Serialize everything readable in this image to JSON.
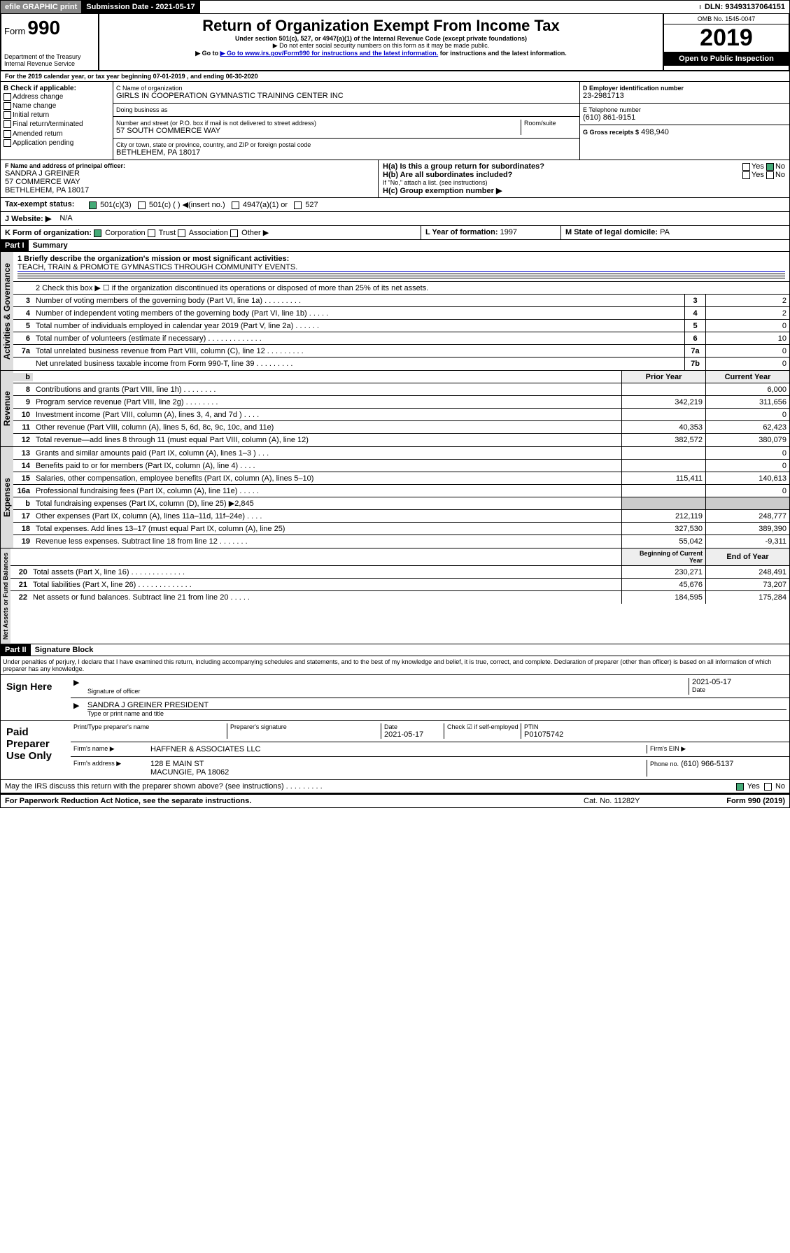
{
  "topbar": {
    "efile": "efile GRAPHIC print",
    "submission_label": "Submission Date - 2021-05-17",
    "dln": "DLN: 93493137064151"
  },
  "header": {
    "form_prefix": "Form",
    "form_number": "990",
    "dept": "Department of the Treasury\nInternal Revenue Service",
    "title": "Return of Organization Exempt From Income Tax",
    "subtitle": "Under section 501(c), 527, or 4947(a)(1) of the Internal Revenue Code (except private foundations)",
    "note1": "▶ Do not enter social security numbers on this form as it may be made public.",
    "note2": "▶ Go to www.irs.gov/Form990 for instructions and the latest information.",
    "omb": "OMB No. 1545-0047",
    "year": "2019",
    "open": "Open to Public Inspection"
  },
  "period": "For the 2019 calendar year, or tax year beginning 07-01-2019    , and ending 06-30-2020",
  "boxB": {
    "label": "B Check if applicable:",
    "items": [
      "Address change",
      "Name change",
      "Initial return",
      "Final return/terminated",
      "Amended return",
      "Application pending"
    ]
  },
  "boxC": {
    "name_label": "C Name of organization",
    "name": "GIRLS IN COOPERATION GYMNASTIC TRAINING CENTER INC",
    "dba_label": "Doing business as",
    "addr_label": "Number and street (or P.O. box if mail is not delivered to street address)",
    "room_label": "Room/suite",
    "addr": "57 SOUTH COMMERCE WAY",
    "city_label": "City or town, state or province, country, and ZIP or foreign postal code",
    "city": "BETHLEHEM, PA  18017"
  },
  "boxD": {
    "label": "D Employer identification number",
    "value": "23-2981713"
  },
  "boxE": {
    "label": "E Telephone number",
    "value": "(610) 861-9151"
  },
  "boxG": {
    "label": "G Gross receipts $",
    "value": "498,940"
  },
  "boxF": {
    "label": "F  Name and address of principal officer:",
    "name": "SANDRA J GREINER",
    "addr1": "57 COMMERCE WAY",
    "addr2": "BETHLEHEM, PA  18017"
  },
  "boxH": {
    "a": "H(a)  Is this a group return for subordinates?",
    "a_yes": "Yes",
    "a_no": "No",
    "b": "H(b)  Are all subordinates included?",
    "b_yes": "Yes",
    "b_no": "No",
    "b_note": "If \"No,\" attach a list. (see instructions)",
    "c": "H(c)  Group exemption number ▶"
  },
  "boxI": {
    "label": "Tax-exempt status:",
    "a": "501(c)(3)",
    "b": "501(c) (   ) ◀(insert no.)",
    "c": "4947(a)(1) or",
    "d": "527"
  },
  "boxJ": {
    "label": "J   Website: ▶",
    "value": "N/A"
  },
  "boxK": {
    "label": "K Form of organization:",
    "a": "Corporation",
    "b": "Trust",
    "c": "Association",
    "d": "Other ▶"
  },
  "boxL": {
    "label": "L Year of formation:",
    "value": "1997"
  },
  "boxM": {
    "label": "M State of legal domicile:",
    "value": "PA"
  },
  "part1": {
    "header": "Part I",
    "title": "Summary"
  },
  "governance": {
    "label": "Activities & Governance",
    "l1_label": "1  Briefly describe the organization's mission or most significant activities:",
    "l1_value": "TEACH, TRAIN & PROMOTE GYMNASTICS THROUGH COMMUNITY EVENTS.",
    "l2": "2   Check this box ▶ ☐  if the organization discontinued its operations or disposed of more than 25% of its net assets.",
    "lines": [
      {
        "n": "3",
        "t": "Number of voting members of the governing body (Part VI, line 1a)   .    .    .    .    .    .    .    .    .",
        "k": "3",
        "v": "2"
      },
      {
        "n": "4",
        "t": "Number of independent voting members of the governing body (Part VI, line 1b)   .    .    .    .    .",
        "k": "4",
        "v": "2"
      },
      {
        "n": "5",
        "t": "Total number of individuals employed in calendar year 2019 (Part V, line 2a)   .    .    .    .    .    .",
        "k": "5",
        "v": "0"
      },
      {
        "n": "6",
        "t": "Total number of volunteers (estimate if necessary)   .    .    .    .    .    .    .    .    .    .    .    .    .",
        "k": "6",
        "v": "10"
      },
      {
        "n": "7a",
        "t": "Total unrelated business revenue from Part VIII, column (C), line 12   .    .    .    .    .    .    .    .    .",
        "k": "7a",
        "v": "0"
      },
      {
        "n": "",
        "t": "Net unrelated business taxable income from Form 990-T, line 39   .    .    .    .    .    .    .    .    .",
        "k": "7b",
        "v": "0"
      }
    ]
  },
  "revenue": {
    "label": "Revenue",
    "prior_hdr": "Prior Year",
    "curr_hdr": "Current Year",
    "lines": [
      {
        "n": "8",
        "t": "Contributions and grants (Part VIII, line 1h)   .    .    .    .    .    .    .    .",
        "p": "",
        "c": "6,000"
      },
      {
        "n": "9",
        "t": "Program service revenue (Part VIII, line 2g)   .    .    .    .    .    .    .    .",
        "p": "342,219",
        "c": "311,656"
      },
      {
        "n": "10",
        "t": "Investment income (Part VIII, column (A), lines 3, 4, and 7d )   .    .    .    .",
        "p": "",
        "c": "0"
      },
      {
        "n": "11",
        "t": "Other revenue (Part VIII, column (A), lines 5, 6d, 8c, 9c, 10c, and 11e)",
        "p": "40,353",
        "c": "62,423"
      },
      {
        "n": "12",
        "t": "Total revenue—add lines 8 through 11 (must equal Part VIII, column (A), line 12)",
        "p": "382,572",
        "c": "380,079"
      }
    ]
  },
  "expenses": {
    "label": "Expenses",
    "lines": [
      {
        "n": "13",
        "t": "Grants and similar amounts paid (Part IX, column (A), lines 1–3 )   .    .    .",
        "p": "",
        "c": "0"
      },
      {
        "n": "14",
        "t": "Benefits paid to or for members (Part IX, column (A), line 4)   .    .    .    .",
        "p": "",
        "c": "0"
      },
      {
        "n": "15",
        "t": "Salaries, other compensation, employee benefits (Part IX, column (A), lines 5–10)",
        "p": "115,411",
        "c": "140,613"
      },
      {
        "n": "16a",
        "t": "Professional fundraising fees (Part IX, column (A), line 11e)   .    .    .    .    .",
        "p": "",
        "c": "0"
      },
      {
        "n": "b",
        "t": "Total fundraising expenses (Part IX, column (D), line 25) ▶2,845",
        "p": null,
        "c": null
      },
      {
        "n": "17",
        "t": "Other expenses (Part IX, column (A), lines 11a–11d, 11f–24e)   .    .    .    .",
        "p": "212,119",
        "c": "248,777"
      },
      {
        "n": "18",
        "t": "Total expenses. Add lines 13–17 (must equal Part IX, column (A), line 25)",
        "p": "327,530",
        "c": "389,390"
      },
      {
        "n": "19",
        "t": "Revenue less expenses. Subtract line 18 from line 12   .    .    .    .    .    .    .",
        "p": "55,042",
        "c": "-9,311"
      }
    ]
  },
  "netassets": {
    "label": "Net Assets or Fund Balances",
    "beg_hdr": "Beginning of Current Year",
    "end_hdr": "End of Year",
    "lines": [
      {
        "n": "20",
        "t": "Total assets (Part X, line 16)   .    .    .    .    .    .    .    .    .    .    .    .    .",
        "p": "230,271",
        "c": "248,491"
      },
      {
        "n": "21",
        "t": "Total liabilities (Part X, line 26)   .    .    .    .    .    .    .    .    .    .    .    .    .",
        "p": "45,676",
        "c": "73,207"
      },
      {
        "n": "22",
        "t": "Net assets or fund balances. Subtract line 21 from line 20   .    .    .    .    .",
        "p": "184,595",
        "c": "175,284"
      }
    ]
  },
  "part2": {
    "header": "Part II",
    "title": "Signature Block"
  },
  "perjury": "Under penalties of perjury, I declare that I have examined this return, including accompanying schedules and statements, and to the best of my knowledge and belief, it is true, correct, and complete. Declaration of preparer (other than officer) is based on all information of which preparer has any knowledge.",
  "sign": {
    "here": "Sign Here",
    "sig_officer": "Signature of officer",
    "date": "2021-05-17",
    "date_label": "Date",
    "name": "SANDRA J GREINER PRESIDENT",
    "name_label": "Type or print name and title"
  },
  "paid": {
    "label": "Paid Preparer Use Only",
    "h1": "Print/Type preparer's name",
    "h2": "Preparer's signature",
    "h3": "Date",
    "date": "2021-05-17",
    "h4": "Check ☑ if self-employed",
    "h5": "PTIN",
    "ptin": "P01075742",
    "firm_label": "Firm's name    ▶",
    "firm": "HAFFNER & ASSOCIATES LLC",
    "ein_label": "Firm's EIN ▶",
    "addr_label": "Firm's address ▶",
    "addr1": "128 E MAIN ST",
    "addr2": "MACUNGIE, PA  18062",
    "phone_label": "Phone no.",
    "phone": "(610) 966-5137"
  },
  "footer": {
    "discuss": "May the IRS discuss this return with the preparer shown above? (see instructions)   .    .    .    .    .    .    .    .    .",
    "yes": "Yes",
    "no": "No",
    "pra": "For Paperwork Reduction Act Notice, see the separate instructions.",
    "cat": "Cat. No. 11282Y",
    "form": "Form 990 (2019)"
  }
}
